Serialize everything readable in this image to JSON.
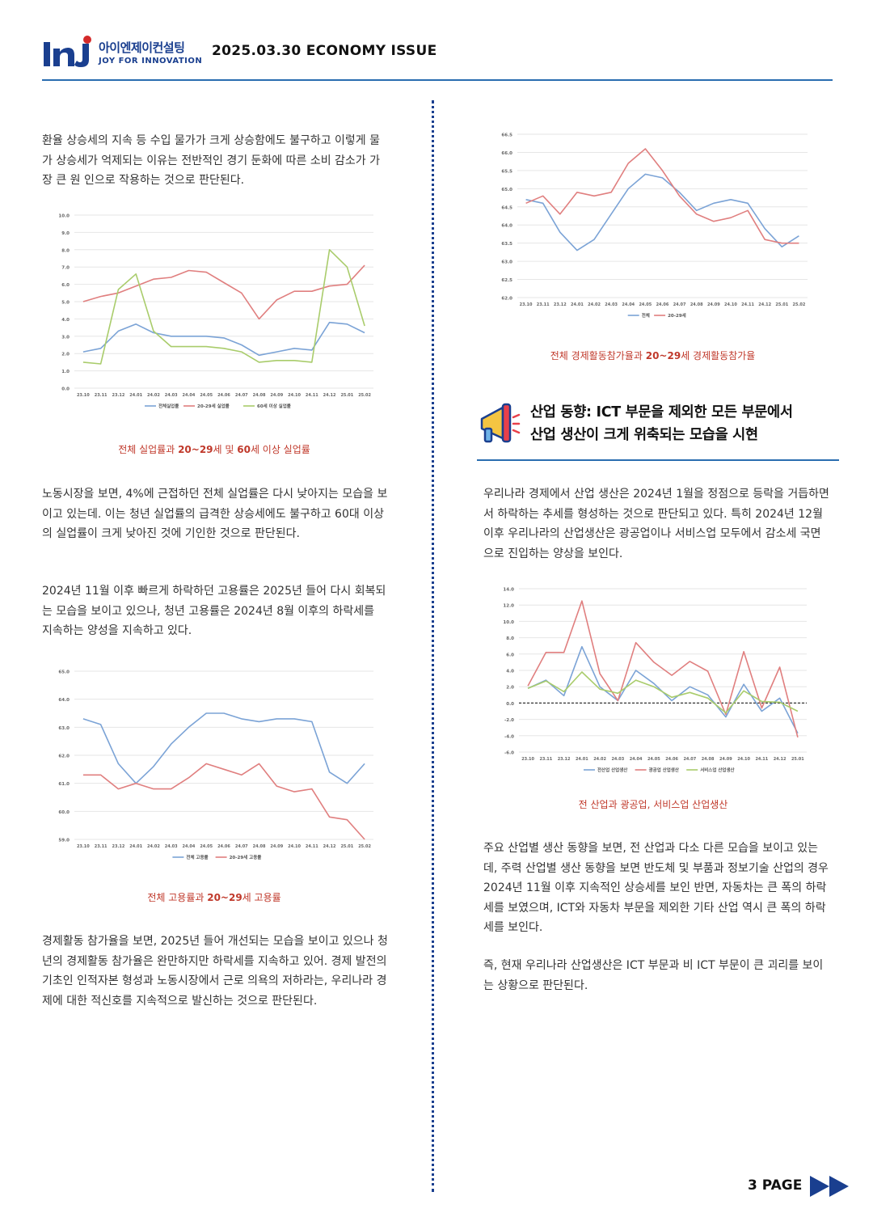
{
  "header": {
    "logo_korean": "아이엔제이컨설팅",
    "logo_english": "JOY FOR INNOVATION",
    "issue_title": "2025.03.30 ECONOMY ISSUE"
  },
  "left": {
    "para1": "환율 상승세의 지속 등 수입 물가가 크게 상승함에도 불구하고 이렇게 물가 상승세가 억제되는 이유는 전반적인 경기 둔화에 따른 소비 감소가 가장 큰 원 인으로 작용하는 것으로 판단된다.",
    "caption1_pre": "전체 실업률과 ",
    "caption1_b1": "20~29",
    "caption1_mid": "세 및 ",
    "caption1_b2": "60",
    "caption1_post": "세 이상 실업률",
    "para2": "노동시장을 보면, 4%에 근접하던 전체 실업률은 다시 낮아지는 모습을 보이고 있는데. 이는 청년 실업률의 급격한 상승세에도 불구하고 60대 이상의 실업률이 크게 낮아진 것에 기인한 것으로 판단된다.",
    "para3": "2024년 11월 이후 빠르게 하락하던 고용률은 2025년 들어 다시 회복되는 모습을 보이고 있으나, 청년 고용률은 2024년 8월 이후의 하락세를 지속하는 양성을 지속하고 있다.",
    "caption2_pre": "전체 고용률과 ",
    "caption2_b": "20~29",
    "caption2_post": "세 고용률",
    "para4": "경제활동 참가율을 보면, 2025년 들어 개선되는 모습을 보이고 있으나 청년의 경제활동 참가율은 완만하지만 하락세를 지속하고 있어. 경제 발전의 기초인 인적자본 형성과 노동시장에서 근로 의욕의 저하라는, 우리나라 경제에 대한 적신호를 지속적으로 발신하는 것으로 판단된다."
  },
  "right": {
    "caption3_pre": "전체 경제활동참가율과 ",
    "caption3_b": "20~29",
    "caption3_post": "세 경제활동참가율",
    "section_title_line1": "산업 동향: ICT 부문을 제외한 모든 부문에서",
    "section_title_line2": "산업 생산이 크게 위축되는 모습을 시현",
    "para5": "우리나라 경제에서 산업 생산은 2024년 1월을 정점으로 등락을 거듭하면서 하락하는 추세를 형성하는 것으로 판단되고 있다. 특히 2024년 12월 이후 우리나라의 산업생산은 광공업이나 서비스업 모두에서 감소세 국면으로 진입하는 양상을 보인다.",
    "caption4": "전 산업과 광공업, 서비스업 산업생산",
    "para6": "주요 산업별 생산 동향을 보면, 전 산업과 다소 다른 모습을 보이고 있는데, 주력 산업별 생산 동향을 보면 반도체 및 부품과 정보기술 산업의 경우 2024년 11월 이후 지속적인 상승세를 보인 반면, 자동차는 큰 폭의 하락세를 보였으며, ICT와 자동차 부문을 제외한 기타 산업 역시 큰 폭의 하락세를 보인다.",
    "para7": "즉, 현재 우리나라 산업생산은 ICT 부문과 비 ICT 부문이 큰 괴리를 보이는 상황으로 판단된다."
  },
  "footer": {
    "page_label": "3 PAGE"
  },
  "colors": {
    "blue": "#7ba3d6",
    "red": "#e07f7f",
    "green": "#a9cc6b",
    "navy": "#1a3f8f",
    "caption": "#c0392b"
  },
  "chart_data": [
    {
      "type": "line",
      "categories": [
        "23.10",
        "23.11",
        "23.12",
        "24.01",
        "24.02",
        "24.03",
        "24.04",
        "24.05",
        "24.06",
        "24.07",
        "24.08",
        "24.09",
        "24.10",
        "24.11",
        "24.12",
        "25.01",
        "25.02"
      ],
      "ylim": [
        0,
        10
      ],
      "yticks": [
        "0.0",
        "1.0",
        "2.0",
        "3.0",
        "4.0",
        "5.0",
        "6.0",
        "7.0",
        "8.0",
        "9.0",
        "10.0"
      ],
      "series": [
        {
          "name": "전체실업률",
          "color": "#7ba3d6",
          "values": [
            2.1,
            2.3,
            3.3,
            3.7,
            3.2,
            3.0,
            3.0,
            3.0,
            2.9,
            2.5,
            1.9,
            2.1,
            2.3,
            2.2,
            3.8,
            3.7,
            3.2
          ]
        },
        {
          "name": "20-29세 실업률",
          "color": "#e07f7f",
          "values": [
            5.0,
            5.3,
            5.5,
            5.9,
            6.3,
            6.4,
            6.8,
            6.7,
            6.1,
            5.5,
            4.0,
            5.1,
            5.6,
            5.6,
            5.9,
            6.0,
            7.1
          ]
        },
        {
          "name": "60세 이상 실업률",
          "color": "#a9cc6b",
          "values": [
            1.5,
            1.4,
            5.7,
            6.6,
            3.3,
            2.4,
            2.4,
            2.4,
            2.3,
            2.1,
            1.5,
            1.6,
            1.6,
            1.5,
            8.0,
            7.0,
            3.6
          ]
        }
      ]
    },
    {
      "type": "line",
      "categories": [
        "23.10",
        "23.11",
        "23.12",
        "24.01",
        "24.02",
        "24.03",
        "24.04",
        "24.05",
        "24.06",
        "24.07",
        "24.08",
        "24.09",
        "24.10",
        "24.11",
        "24.12",
        "25.01",
        "25.02"
      ],
      "ylim": [
        59,
        65
      ],
      "yticks": [
        "59.0",
        "60.0",
        "61.0",
        "62.0",
        "63.0",
        "64.0",
        "65.0"
      ],
      "series": [
        {
          "name": "전체 고용률",
          "color": "#7ba3d6",
          "values": [
            63.3,
            63.1,
            61.7,
            61.0,
            61.6,
            62.4,
            63.0,
            63.5,
            63.5,
            63.3,
            63.2,
            63.3,
            63.3,
            63.2,
            61.4,
            61.0,
            61.7
          ]
        },
        {
          "name": "20-29세 고용률",
          "color": "#e07f7f",
          "values": [
            61.3,
            61.3,
            60.8,
            61.0,
            60.8,
            60.8,
            61.2,
            61.7,
            61.5,
            61.3,
            61.7,
            60.9,
            60.7,
            60.8,
            59.8,
            59.7,
            59.0
          ]
        }
      ]
    },
    {
      "type": "line",
      "categories": [
        "23.10",
        "23.11",
        "23.12",
        "24.01",
        "24.02",
        "24.03",
        "24.04",
        "24.05",
        "24.06",
        "24.07",
        "24.08",
        "24.09",
        "24.10",
        "24.11",
        "24.12",
        "25.01",
        "25.02"
      ],
      "ylim": [
        62,
        66.5
      ],
      "yticks": [
        "62.0",
        "62.5",
        "63.0",
        "63.5",
        "64.0",
        "64.5",
        "65.0",
        "65.5",
        "66.0",
        "66.5"
      ],
      "series": [
        {
          "name": "전체",
          "color": "#7ba3d6",
          "values": [
            64.7,
            64.6,
            63.8,
            63.3,
            63.6,
            64.3,
            65.0,
            65.4,
            65.3,
            64.9,
            64.4,
            64.6,
            64.7,
            64.6,
            63.9,
            63.4,
            63.7
          ]
        },
        {
          "name": "20-29세",
          "color": "#e07f7f",
          "values": [
            64.6,
            64.8,
            64.3,
            64.9,
            64.8,
            64.9,
            65.7,
            66.1,
            65.5,
            64.8,
            64.3,
            64.1,
            64.2,
            64.4,
            63.6,
            63.5,
            63.5
          ]
        }
      ]
    },
    {
      "type": "line",
      "categories": [
        "23.10",
        "23.11",
        "23.12",
        "24.01",
        "24.02",
        "24.03",
        "24.04",
        "24.05",
        "24.06",
        "24.07",
        "24.08",
        "24.09",
        "24.10",
        "24.11",
        "24.12",
        "25.01"
      ],
      "ylim": [
        -6,
        14
      ],
      "yticks": [
        "-6.0",
        "-4.0",
        "-2.0",
        "0.0",
        "2.0",
        "4.0",
        "6.0",
        "8.0",
        "10.0",
        "12.0",
        "14.0"
      ],
      "series": [
        {
          "name": "전산업 산업생산",
          "color": "#7ba3d6",
          "values": [
            1.8,
            2.8,
            0.9,
            6.9,
            2.0,
            0.3,
            4.0,
            2.4,
            0.3,
            2.0,
            1.0,
            -1.7,
            2.3,
            -1.0,
            0.6,
            -3.7
          ]
        },
        {
          "name": "광공업 산업생산",
          "color": "#e07f7f",
          "values": [
            2.1,
            6.2,
            6.2,
            12.5,
            3.6,
            0.3,
            7.4,
            5.0,
            3.4,
            5.1,
            3.9,
            -1.4,
            6.3,
            -0.6,
            4.4,
            -4.2
          ]
        },
        {
          "name": "서비스업 산업생산",
          "color": "#a9cc6b",
          "values": [
            1.8,
            2.7,
            1.4,
            3.8,
            1.7,
            1.2,
            2.8,
            2.0,
            0.7,
            1.3,
            0.6,
            -1.2,
            1.5,
            0.2,
            0.1,
            -1.0
          ]
        }
      ]
    }
  ]
}
